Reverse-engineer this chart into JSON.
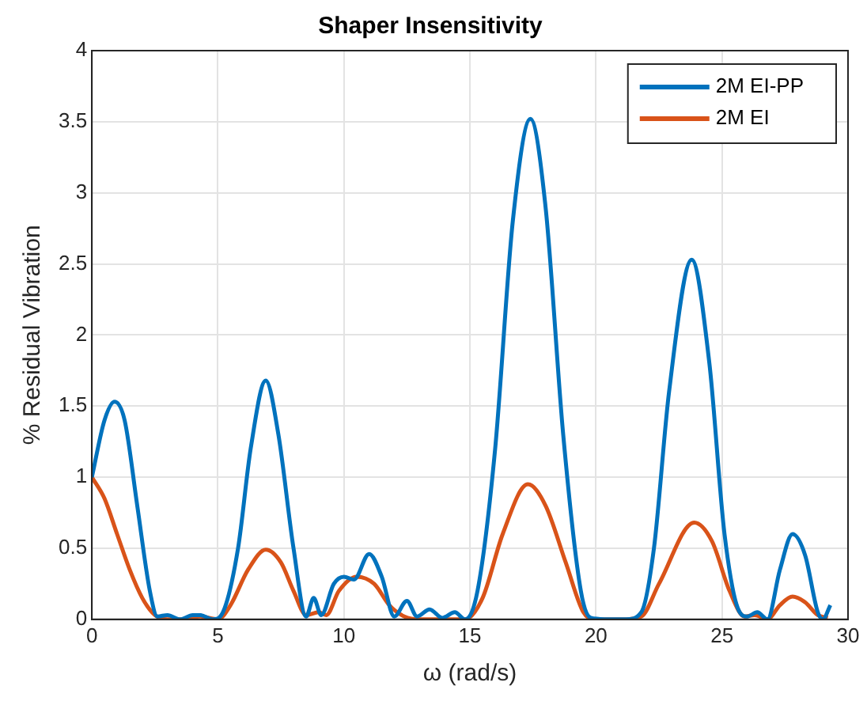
{
  "chart_data": {
    "type": "line",
    "title": "Shaper Insensitivity",
    "xlabel": "ω (rad/s)",
    "ylabel": "% Residual Vibration",
    "xlim": [
      0,
      30
    ],
    "xticks": [
      0,
      5,
      10,
      15,
      20,
      25,
      30
    ],
    "ylim": [
      0,
      4
    ],
    "yticks": [
      0,
      0.5,
      1,
      1.5,
      2,
      2.5,
      3,
      3.5,
      4
    ],
    "grid": true,
    "legend": "top right",
    "marker": "none",
    "line_style": "solid",
    "series": [
      {
        "name": "2M EI-PP",
        "color": "#0072bd",
        "x": [
          0,
          0.5,
          0.9,
          1.3,
          1.8,
          2.3,
          2.6,
          3.0,
          3.5,
          4.0,
          4.3,
          4.8,
          5.2,
          5.8,
          6.3,
          6.9,
          7.4,
          8.0,
          8.5,
          8.8,
          9.1,
          9.6,
          10.0,
          10.4,
          11.0,
          11.5,
          12.0,
          12.5,
          12.9,
          13.4,
          13.9,
          14.4,
          14.8,
          15.3,
          16.0,
          16.7,
          17.4,
          18.0,
          18.7,
          19.4,
          19.8,
          20.5,
          21.2,
          21.8,
          22.3,
          22.9,
          23.8,
          24.5,
          25.1,
          25.7,
          26.0,
          26.4,
          26.8,
          27.3,
          27.8,
          28.3,
          28.8,
          29.0,
          29.3
        ],
        "values": [
          1.0,
          1.4,
          1.53,
          1.4,
          0.8,
          0.2,
          0.02,
          0.03,
          0.0,
          0.03,
          0.03,
          0.0,
          0.05,
          0.5,
          1.2,
          1.68,
          1.3,
          0.5,
          0.02,
          0.15,
          0.03,
          0.25,
          0.3,
          0.28,
          0.46,
          0.3,
          0.02,
          0.13,
          0.02,
          0.07,
          0.01,
          0.05,
          0.0,
          0.2,
          1.2,
          2.8,
          3.52,
          2.9,
          1.3,
          0.2,
          0.01,
          0.0,
          0.0,
          0.05,
          0.5,
          1.6,
          2.53,
          1.8,
          0.6,
          0.05,
          0.02,
          0.05,
          0.0,
          0.35,
          0.6,
          0.45,
          0.05,
          0.0,
          0.1
        ]
      },
      {
        "name": "2M EI",
        "color": "#d95319",
        "x": [
          0,
          0.5,
          1.0,
          1.5,
          2.0,
          2.5,
          3.0,
          3.5,
          4.3,
          5.0,
          5.5,
          6.2,
          6.9,
          7.5,
          8.0,
          8.5,
          9.0,
          9.3,
          9.8,
          10.5,
          11.2,
          11.8,
          12.4,
          13.0,
          14.0,
          14.8,
          15.5,
          16.3,
          17.3,
          18.0,
          18.8,
          19.5,
          20.0,
          21.0,
          21.8,
          22.5,
          23.9,
          24.6,
          25.3,
          25.9,
          26.3,
          26.8,
          27.3,
          27.8,
          28.3,
          28.8,
          29.2
        ],
        "values": [
          1.0,
          0.85,
          0.6,
          0.35,
          0.15,
          0.03,
          0.0,
          0.0,
          0.02,
          0.0,
          0.1,
          0.35,
          0.49,
          0.4,
          0.2,
          0.03,
          0.05,
          0.03,
          0.2,
          0.3,
          0.25,
          0.1,
          0.02,
          0.0,
          0.0,
          0.0,
          0.15,
          0.6,
          0.95,
          0.8,
          0.4,
          0.05,
          0.0,
          0.0,
          0.02,
          0.25,
          0.68,
          0.55,
          0.2,
          0.02,
          0.03,
          0.0,
          0.1,
          0.16,
          0.12,
          0.03,
          0.01
        ]
      }
    ]
  }
}
